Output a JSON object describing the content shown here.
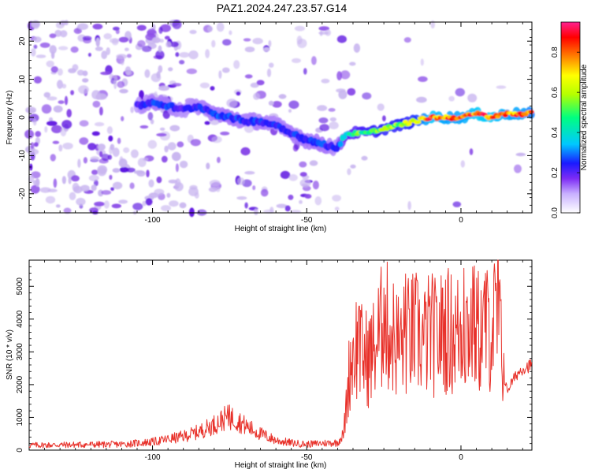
{
  "title": "PAZ1.2024.247.23.57.G14",
  "colors": {
    "snr_line": "#e8312a",
    "axis": "#000000",
    "blob_light": "#c9b6f0",
    "blob_mid": "#8a4be8",
    "blob_dark": "#5a10e0"
  },
  "chart_data": [
    {
      "type": "heatmap",
      "title": "PAZ1.2024.247.23.57.G14",
      "xlabel": "Height of straight line (km)",
      "ylabel": "Frequency (Hz)",
      "xlim": [
        -140,
        23
      ],
      "ylim": [
        -25,
        25
      ],
      "x_ticks": [
        -100,
        -50,
        0
      ],
      "y_ticks": [
        -20,
        -10,
        0,
        10,
        20
      ],
      "x_tick_labels": [
        "-100",
        "-50",
        "0"
      ],
      "y_tick_labels": [
        "-20",
        "-10",
        "0",
        "10",
        "20"
      ],
      "colorbar": {
        "label": "Normalized spectral amplitude",
        "range": [
          0,
          0.95
        ],
        "ticks": [
          0.0,
          0.2,
          0.4,
          0.6,
          0.8
        ],
        "tick_labels": [
          "0.0",
          "0.2",
          "0.4",
          "0.6",
          "0.8"
        ],
        "colormap": [
          "#ffffff",
          "#c8b0ff",
          "#7d2cf5",
          "#1a1aff",
          "#00c8ff",
          "#00ff80",
          "#b4ff00",
          "#ffff00",
          "#ff8000",
          "#ff0000",
          "#ff2090"
        ]
      },
      "ridge": {
        "x": [
          -105,
          -100,
          -95,
          -90,
          -85,
          -80,
          -75,
          -70,
          -65,
          -60,
          -55,
          -50,
          -45,
          -40,
          -38,
          -35,
          -30,
          -25,
          -20,
          -15,
          -10,
          -5,
          0,
          5,
          10,
          15,
          20,
          23
        ],
        "frequency": [
          3,
          4,
          3,
          2,
          3,
          1,
          0,
          -1,
          -1,
          -2,
          -4,
          -6,
          -7,
          -8,
          -5,
          -4,
          -4,
          -3,
          -2,
          -1,
          0,
          0,
          0,
          1,
          0,
          1,
          1,
          1
        ],
        "amplitude": [
          0.25,
          0.3,
          0.3,
          0.25,
          0.28,
          0.3,
          0.32,
          0.28,
          0.3,
          0.28,
          0.3,
          0.3,
          0.32,
          0.25,
          0.45,
          0.5,
          0.55,
          0.6,
          0.6,
          0.65,
          0.85,
          0.8,
          0.8,
          0.85,
          0.85,
          0.8,
          0.8,
          0.75
        ]
      }
    },
    {
      "type": "line",
      "xlabel": "Height of straight line (km)",
      "ylabel": "SNR (10 * v/v)",
      "xlim": [
        -140,
        23
      ],
      "ylim": [
        0,
        5800
      ],
      "x_ticks": [
        -100,
        -50,
        0
      ],
      "y_ticks": [
        0,
        1000,
        2000,
        3000,
        4000,
        5000
      ],
      "x_tick_labels": [
        "-100",
        "-50",
        "0"
      ],
      "y_tick_labels": [
        "0",
        "1000",
        "2000",
        "3000",
        "4000",
        "5000"
      ],
      "series": [
        {
          "x": [
            -140,
            -130,
            -120,
            -110,
            -100,
            -95,
            -90,
            -85,
            -80,
            -76,
            -73,
            -70,
            -65,
            -60,
            -55,
            -50,
            -45,
            -40,
            -38,
            -36,
            -34,
            -32,
            -30,
            -28,
            -25,
            -22,
            -20,
            -18,
            -15,
            -12,
            -10,
            -8,
            -5,
            -2,
            0,
            3,
            6,
            9,
            11,
            13,
            14,
            15,
            16,
            18,
            20,
            23
          ],
          "y": [
            150,
            160,
            170,
            180,
            250,
            330,
            420,
            560,
            780,
            1000,
            950,
            750,
            500,
            300,
            220,
            180,
            210,
            230,
            500,
            2600,
            3200,
            2900,
            2800,
            3100,
            3900,
            3500,
            3200,
            3400,
            3600,
            3300,
            3600,
            3400,
            3700,
            3500,
            3700,
            3800,
            3600,
            3700,
            3900,
            3400,
            2200,
            1800,
            2000,
            2300,
            2500,
            2600
          ],
          "peaks": {
            "x": [
              -75,
              -35,
              -33,
              -25,
              -18,
              -10,
              -6,
              1,
              4,
              8,
              11,
              12,
              13
            ],
            "y": [
              1380,
              3300,
              4400,
              4950,
              5380,
              4700,
              4950,
              5550,
              5200,
              5400,
              5400,
              5800,
              4600
            ]
          }
        }
      ]
    }
  ]
}
